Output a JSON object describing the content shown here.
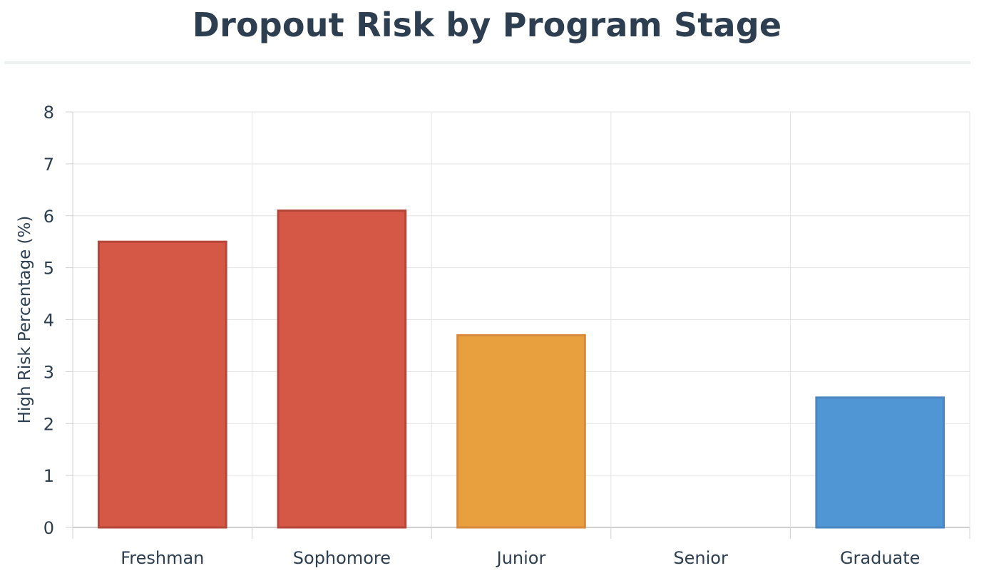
{
  "chart_data": {
    "type": "bar",
    "title": "Dropout Risk by Program Stage",
    "xlabel": "",
    "ylabel": "High Risk Percentage (%)",
    "categories": [
      "Freshman",
      "Sophomore",
      "Junior",
      "Senior",
      "Graduate"
    ],
    "values": [
      5.5,
      6.1,
      3.7,
      0,
      2.5
    ],
    "colors": [
      "#d55745",
      "#d55745",
      "#e8a03e",
      "#d55745",
      "#5096d4"
    ],
    "border_colors": [
      "#b5463a",
      "#b5463a",
      "#d9893a",
      "#b5463a",
      "#4a86c0"
    ],
    "ylim": [
      0,
      8
    ],
    "yticks": [
      "0",
      "1",
      "2",
      "3",
      "4",
      "5",
      "6",
      "7",
      "8"
    ],
    "grid": true,
    "legend": "none"
  },
  "colors": {
    "title": "#2c3e50",
    "grid": "#e3e3e3",
    "axis": "#d0d0d0",
    "divider": "#ecf0f1"
  }
}
